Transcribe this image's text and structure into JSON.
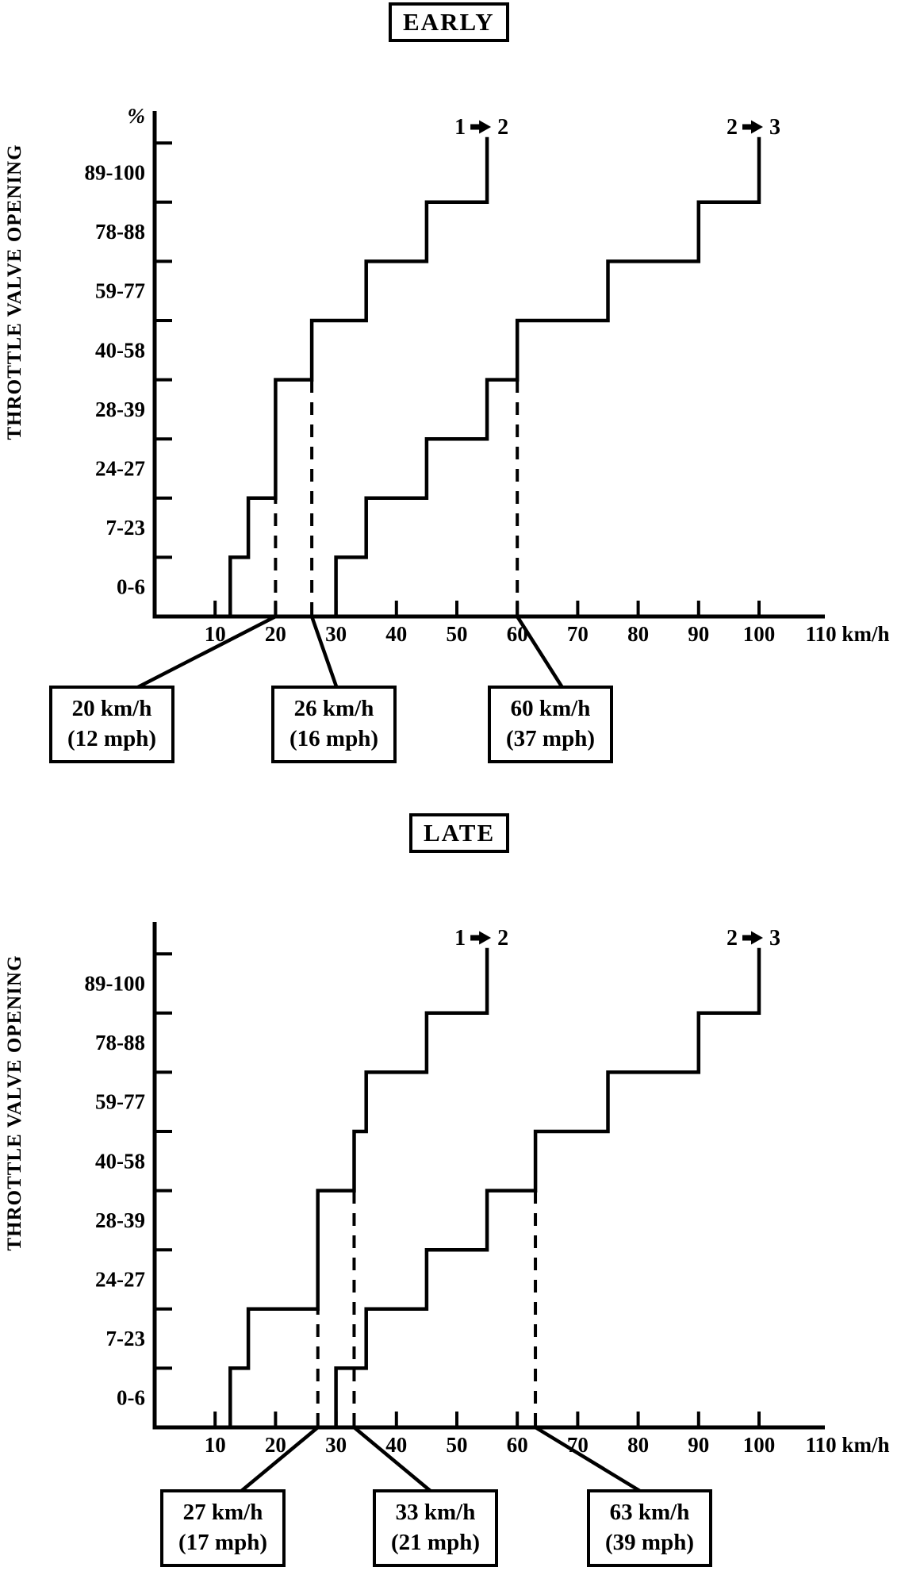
{
  "figure": {
    "background": "#ffffff",
    "ink": "#000000"
  },
  "chart_data": [
    {
      "id": "early",
      "type": "line",
      "subtype": "step",
      "title": "EARLY",
      "ylabel": "THROTTLE VALVE OPENING",
      "y_unit_label": "%",
      "x_unit_label": "km/h",
      "x_range": [
        0,
        110
      ],
      "x_ticks": [
        10,
        20,
        30,
        40,
        50,
        60,
        70,
        80,
        90,
        100
      ],
      "x_end_label": "110 km/h",
      "y_bands": [
        "0-6",
        "7-23",
        "24-27",
        "28-39",
        "40-58",
        "59-77",
        "78-88",
        "89-100"
      ],
      "grid": "off",
      "series": [
        {
          "name": "1 → 2",
          "label_left": "1",
          "label_right": "2",
          "rises": [
            [
              12.5,
              1
            ],
            [
              15.5,
              2
            ],
            [
              20,
              4
            ],
            [
              26,
              5
            ],
            [
              35,
              6
            ],
            [
              45,
              7
            ],
            [
              55,
              8.1
            ]
          ]
        },
        {
          "name": "2 → 3",
          "label_left": "2",
          "label_right": "3",
          "rises": [
            [
              30,
              1
            ],
            [
              35,
              2
            ],
            [
              45,
              3
            ],
            [
              55,
              4
            ],
            [
              60,
              5
            ],
            [
              75,
              6
            ],
            [
              90,
              7
            ],
            [
              100,
              8.1
            ]
          ]
        }
      ],
      "dashed_guides": [
        {
          "kmh": 20,
          "to_level": 2
        },
        {
          "kmh": 26,
          "to_level": 4
        },
        {
          "kmh": 60,
          "to_level": 4
        }
      ],
      "callouts": [
        {
          "speed": "20 km/h",
          "mph": "(12 mph)",
          "anchor_kmh": 20,
          "box_cx": 140,
          "leader_dx": 30
        },
        {
          "speed": "26 km/h",
          "mph": "(16 mph)",
          "anchor_kmh": 26,
          "box_cx": 420,
          "leader_dx": 5
        },
        {
          "speed": "60 km/h",
          "mph": "(37 mph)",
          "anchor_kmh": 60,
          "box_cx": 693,
          "leader_dx": 17
        }
      ]
    },
    {
      "id": "late",
      "type": "line",
      "subtype": "step",
      "title": "LATE",
      "ylabel": "THROTTLE VALVE OPENING",
      "y_unit_label": "",
      "x_unit_label": "km/h",
      "x_range": [
        0,
        110
      ],
      "x_ticks": [
        10,
        20,
        30,
        40,
        50,
        60,
        70,
        80,
        90,
        100
      ],
      "x_end_label": "110 km/h",
      "y_bands": [
        "0-6",
        "7-23",
        "24-27",
        "28-39",
        "40-58",
        "59-77",
        "78-88",
        "89-100"
      ],
      "grid": "off",
      "series": [
        {
          "name": "1 → 2",
          "label_left": "1",
          "label_right": "2",
          "rises": [
            [
              12.5,
              1
            ],
            [
              15.5,
              2
            ],
            [
              27,
              4
            ],
            [
              33,
              5
            ],
            [
              35,
              6
            ],
            [
              45,
              7
            ],
            [
              55,
              8.1
            ]
          ]
        },
        {
          "name": "2 → 3",
          "label_left": "2",
          "label_right": "3",
          "rises": [
            [
              30,
              1
            ],
            [
              35,
              2
            ],
            [
              45,
              3
            ],
            [
              55,
              4
            ],
            [
              63,
              5
            ],
            [
              75,
              6
            ],
            [
              90,
              7
            ],
            [
              100,
              8.1
            ]
          ]
        }
      ],
      "dashed_guides": [
        {
          "kmh": 27,
          "to_level": 2
        },
        {
          "kmh": 33,
          "to_level": 4
        },
        {
          "kmh": 63,
          "to_level": 4
        }
      ],
      "callouts": [
        {
          "speed": "27 km/h",
          "mph": "(17 mph)",
          "anchor_kmh": 27,
          "box_cx": 280,
          "leader_dx": 22
        },
        {
          "speed": "33 km/h",
          "mph": "(21 mph)",
          "anchor_kmh": 33,
          "box_cx": 548,
          "leader_dx": -3
        },
        {
          "speed": "63 km/h",
          "mph": "(39 mph)",
          "anchor_kmh": 63,
          "box_cx": 818,
          "leader_dx": -8
        }
      ]
    }
  ]
}
